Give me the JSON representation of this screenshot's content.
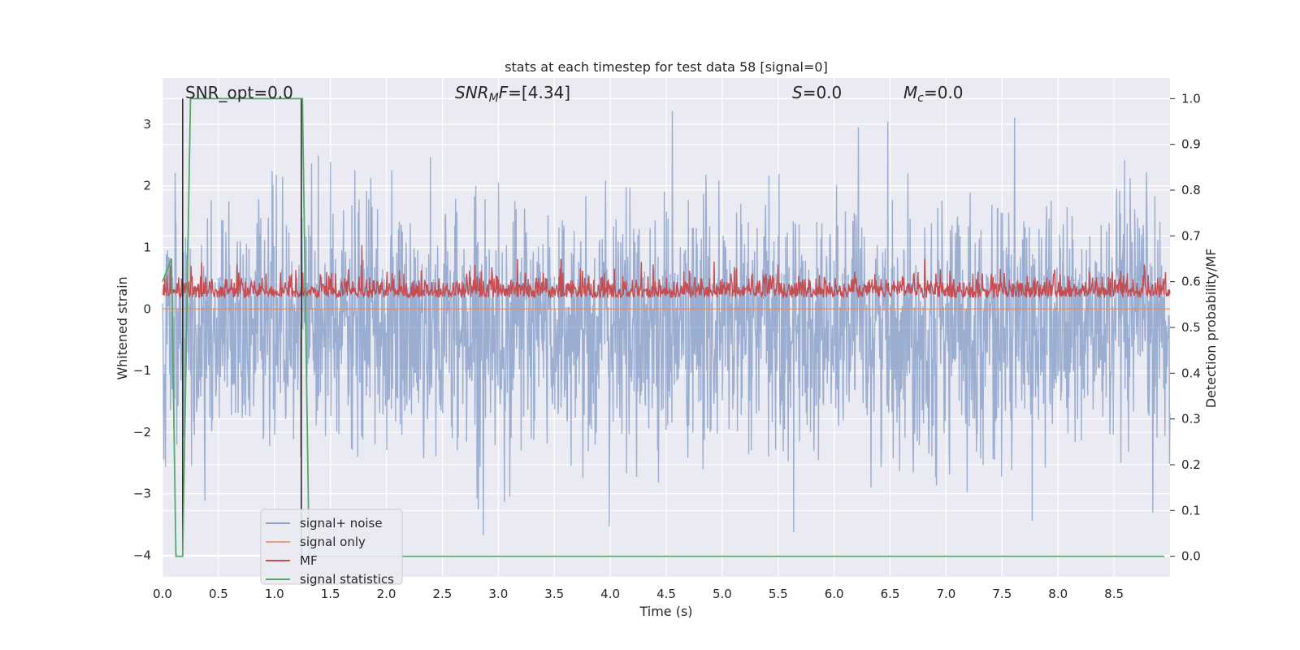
{
  "chart_data": {
    "type": "line",
    "title": "stats at each timestep for test data 58 [signal=0]",
    "xlabel": "Time (s)",
    "ylabel": "Whitened strain",
    "y2label": "Detection probability/MF",
    "xlim": [
      0,
      9.0
    ],
    "ylim": [
      -4.35,
      3.75
    ],
    "y2lim": [
      -0.045,
      1.045
    ],
    "x_ticks": [
      "0.0",
      "0.5",
      "1.0",
      "1.5",
      "2.0",
      "2.5",
      "3.0",
      "3.5",
      "4.0",
      "4.5",
      "5.0",
      "5.5",
      "6.0",
      "6.5",
      "7.0",
      "7.5",
      "8.0",
      "8.5"
    ],
    "y_ticks": [
      "3",
      "2",
      "1",
      "0",
      "−1",
      "−2",
      "−3",
      "−4"
    ],
    "y2_ticks": [
      "1.0",
      "0.9",
      "0.8",
      "0.7",
      "0.6",
      "0.5",
      "0.4",
      "0.3",
      "0.2",
      "0.1",
      "0.0"
    ],
    "grid": true,
    "legend_position": "lower-left",
    "annotations": {
      "snr_opt": "SNR_opt=0.0",
      "snr_mf": "SNR_MF=[4.34]",
      "s": "S=0.0",
      "mc": "M_c=0.0"
    },
    "series": [
      {
        "name": "signal+ noise",
        "color": "#4c72b0",
        "axis": "left",
        "description": "whitened noise, approximately Gaussian, range about -4 to 3.4",
        "x_range": [
          0,
          9.0
        ],
        "y_range": [
          -4.0,
          3.4
        ]
      },
      {
        "name": "signal only",
        "color": "#dd8452",
        "axis": "left",
        "x": [
          0,
          9.0
        ],
        "y": [
          0,
          0
        ]
      },
      {
        "name": "MF",
        "color": "#c44e52",
        "axis": "right",
        "description": "matched-filter output, fluctuating about 0.57-0.60",
        "x_range": [
          0,
          9.0
        ],
        "y2_range": [
          0.55,
          0.68
        ]
      },
      {
        "name": "signal statistics",
        "color": "#55a868",
        "axis": "right",
        "x": [
          0,
          0.08,
          0.12,
          0.18,
          0.25,
          1.25,
          1.31,
          1.35,
          8.95
        ],
        "y": [
          0.6,
          0.65,
          0.0,
          0.0,
          1.0,
          1.0,
          0.0,
          0.0,
          0.0
        ]
      }
    ],
    "vertical_markers": {
      "color": "#2d2d2d",
      "x": [
        0.18,
        1.24
      ],
      "y2_range": [
        0.0,
        1.0
      ]
    }
  }
}
